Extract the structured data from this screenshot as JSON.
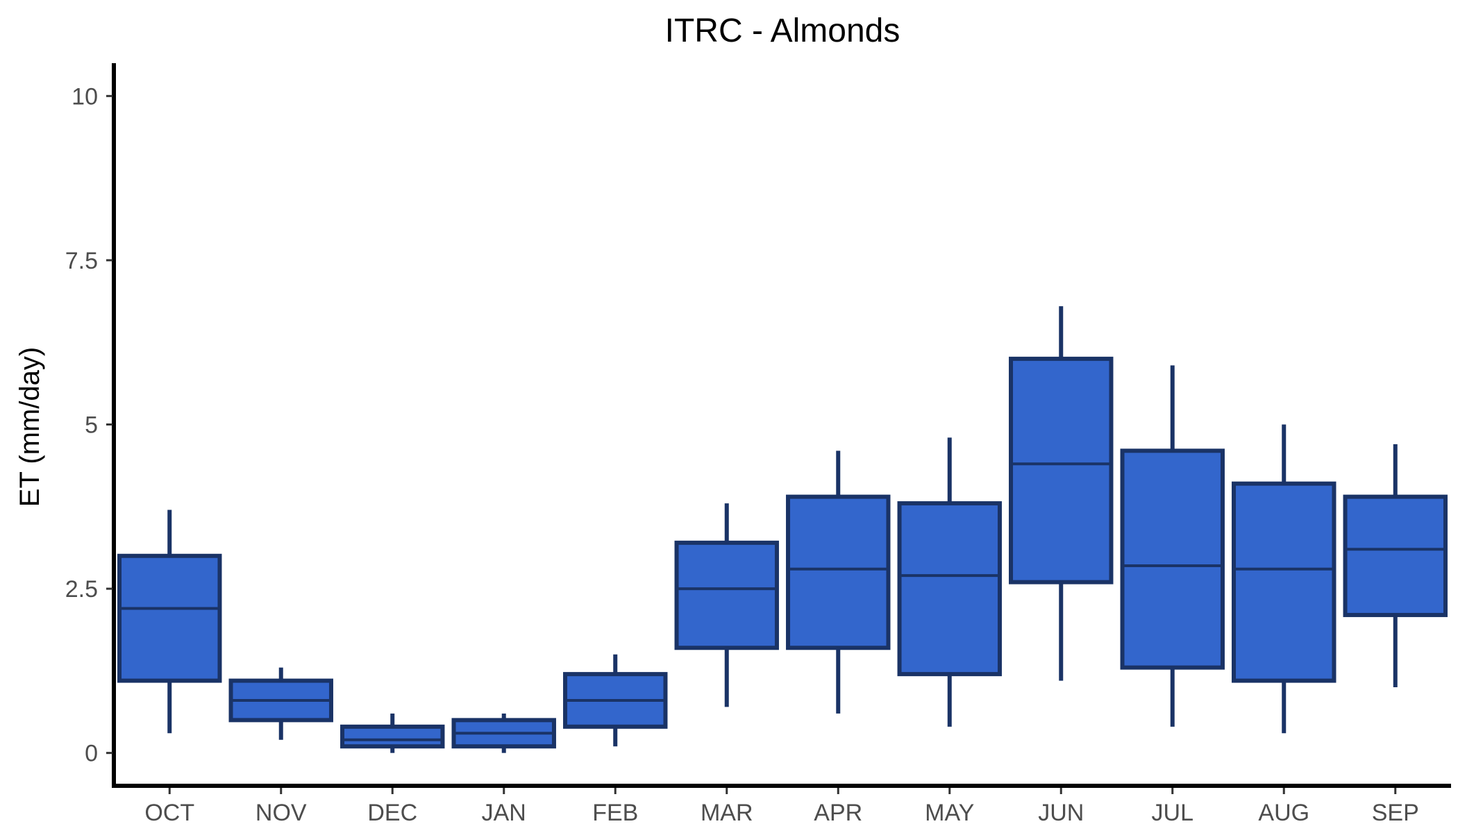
{
  "chart_data": {
    "type": "box",
    "title": "ITRC - Almonds",
    "xlabel": "",
    "ylabel": "ET (mm/day)",
    "ylim": [
      -0.5,
      10.5
    ],
    "yticks": [
      0,
      2.5,
      5,
      7.5,
      10
    ],
    "ytick_labels": [
      "0",
      "2.5",
      "5",
      "7.5",
      "10"
    ],
    "grid": false,
    "legend": "none",
    "colors": {
      "box_fill": "#3366cc",
      "box_stroke": "#1a3366",
      "axis": "#000000",
      "tick_text": "#4d4d4d"
    },
    "categories": [
      "OCT",
      "NOV",
      "DEC",
      "JAN",
      "FEB",
      "MAR",
      "APR",
      "MAY",
      "JUN",
      "JUL",
      "AUG",
      "SEP"
    ],
    "boxes": [
      {
        "min": 0.3,
        "q1": 1.1,
        "median": 2.2,
        "q3": 3.0,
        "max": 3.7
      },
      {
        "min": 0.2,
        "q1": 0.5,
        "median": 0.8,
        "q3": 1.1,
        "max": 1.3
      },
      {
        "min": 0.0,
        "q1": 0.1,
        "median": 0.2,
        "q3": 0.4,
        "max": 0.6
      },
      {
        "min": 0.0,
        "q1": 0.1,
        "median": 0.3,
        "q3": 0.5,
        "max": 0.6
      },
      {
        "min": 0.1,
        "q1": 0.4,
        "median": 0.8,
        "q3": 1.2,
        "max": 1.5
      },
      {
        "min": 0.7,
        "q1": 1.6,
        "median": 2.5,
        "q3": 3.2,
        "max": 3.8
      },
      {
        "min": 0.6,
        "q1": 1.6,
        "median": 2.8,
        "q3": 3.9,
        "max": 4.6
      },
      {
        "min": 0.4,
        "q1": 1.2,
        "median": 2.7,
        "q3": 3.8,
        "max": 4.8
      },
      {
        "min": 1.1,
        "q1": 2.6,
        "median": 4.4,
        "q3": 6.0,
        "max": 6.8
      },
      {
        "min": 0.4,
        "q1": 1.3,
        "median": 2.85,
        "q3": 4.6,
        "max": 5.9
      },
      {
        "min": 0.3,
        "q1": 1.1,
        "median": 2.8,
        "q3": 4.1,
        "max": 5.0
      },
      {
        "min": 1.0,
        "q1": 2.1,
        "median": 3.1,
        "q3": 3.9,
        "max": 4.7
      }
    ]
  }
}
